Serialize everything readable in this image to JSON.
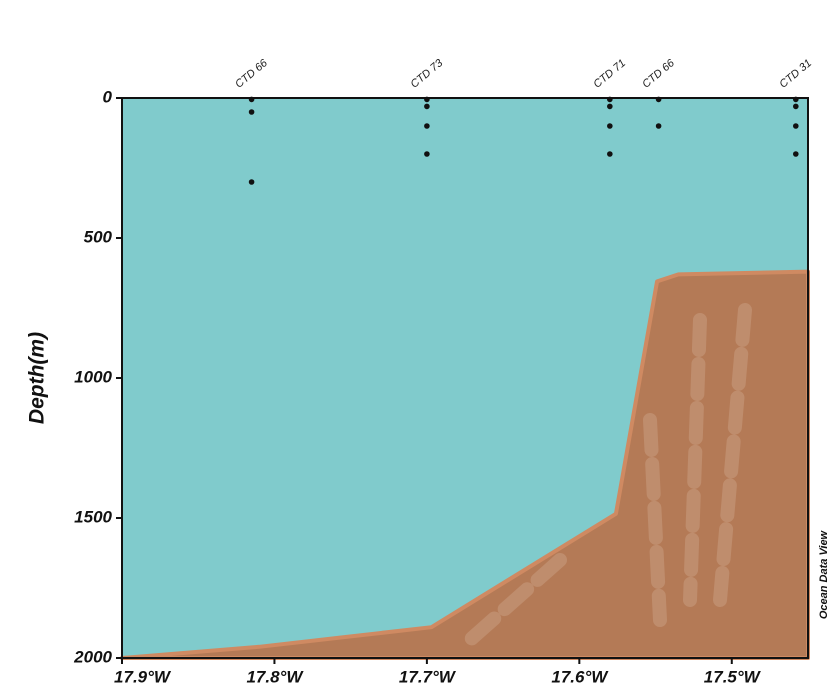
{
  "chart_data": {
    "type": "scatter",
    "y_label": "Depth(m)",
    "watermark": "Ocean Data View",
    "xlim": [
      -17.9,
      -17.45
    ],
    "ylim": [
      0,
      2000
    ],
    "y_inverted": true,
    "xticks": [
      {
        "value": -17.9,
        "label": "17.9°W"
      },
      {
        "value": -17.8,
        "label": "17.8°W"
      },
      {
        "value": -17.7,
        "label": "17.7°W"
      },
      {
        "value": -17.6,
        "label": "17.6°W"
      },
      {
        "value": -17.5,
        "label": "17.5°W"
      }
    ],
    "yticks": [
      0,
      500,
      1000,
      1500,
      2000
    ],
    "background_color": "#80cbcc",
    "stations": [
      {
        "name": "CTD 66",
        "x": -17.815
      },
      {
        "name": "CTD 73",
        "x": -17.7
      },
      {
        "name": "CTD 71",
        "x": -17.58
      },
      {
        "name": "CTD 66",
        "x": -17.548
      },
      {
        "name": "CTD 31",
        "x": -17.458
      }
    ],
    "points": {
      "color": "#111111",
      "x": [
        -17.815,
        -17.815,
        -17.815,
        -17.7,
        -17.7,
        -17.7,
        -17.7,
        -17.58,
        -17.58,
        -17.58,
        -17.58,
        -17.548,
        -17.548,
        -17.458,
        -17.458,
        -17.458,
        -17.458
      ],
      "y": [
        5,
        50,
        300,
        5,
        30,
        100,
        200,
        5,
        30,
        100,
        200,
        5,
        100,
        5,
        30,
        100,
        200
      ]
    },
    "bathymetry": {
      "color": "#b47a56",
      "edge_color": "#cf8a62",
      "x": [
        -17.9,
        -17.81,
        -17.697,
        -17.576,
        -17.549,
        -17.535,
        -17.45
      ],
      "y": [
        2000,
        1960,
        1890,
        1485,
        655,
        630,
        620
      ]
    }
  }
}
